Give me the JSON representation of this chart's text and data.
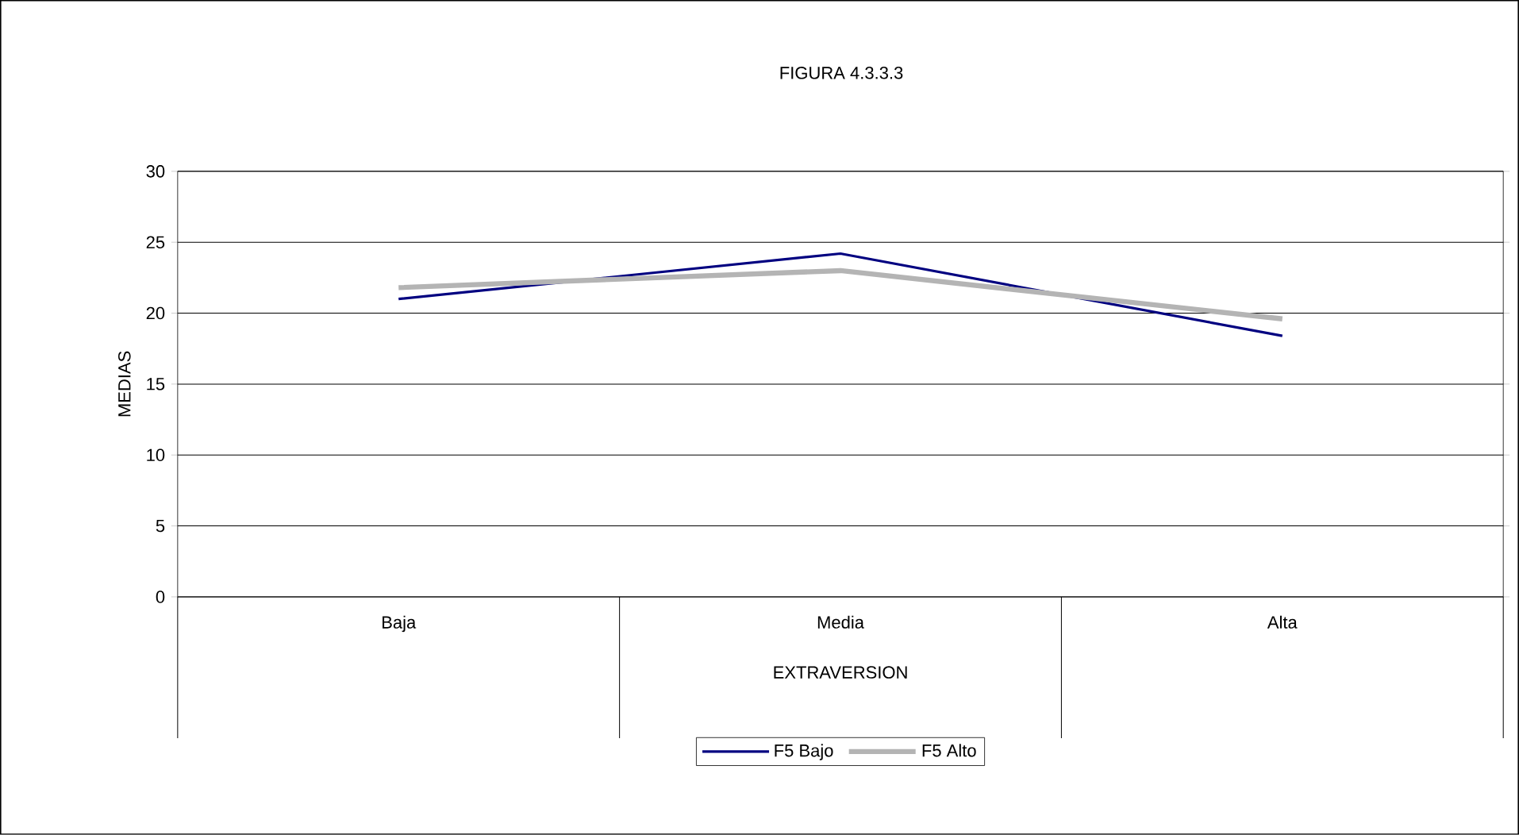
{
  "chart_data": {
    "type": "line",
    "title": "FIGURA 4.3.3.3",
    "xlabel": "EXTRAVERSION",
    "ylabel": "MEDIAS",
    "categories": [
      "Baja",
      "Media",
      "Alta"
    ],
    "series": [
      {
        "name": "F5 Bajo",
        "color": "#000080",
        "values": [
          21.0,
          24.2,
          18.4
        ]
      },
      {
        "name": "F5 Alto",
        "color": "#b4b4b4",
        "values": [
          21.8,
          23.0,
          19.6
        ]
      }
    ],
    "ylim": [
      0,
      30
    ],
    "yticks": [
      0,
      5,
      10,
      15,
      20,
      25,
      30
    ],
    "grid": "y",
    "legend": "bottom",
    "marker": "none",
    "line_style": "solid"
  }
}
